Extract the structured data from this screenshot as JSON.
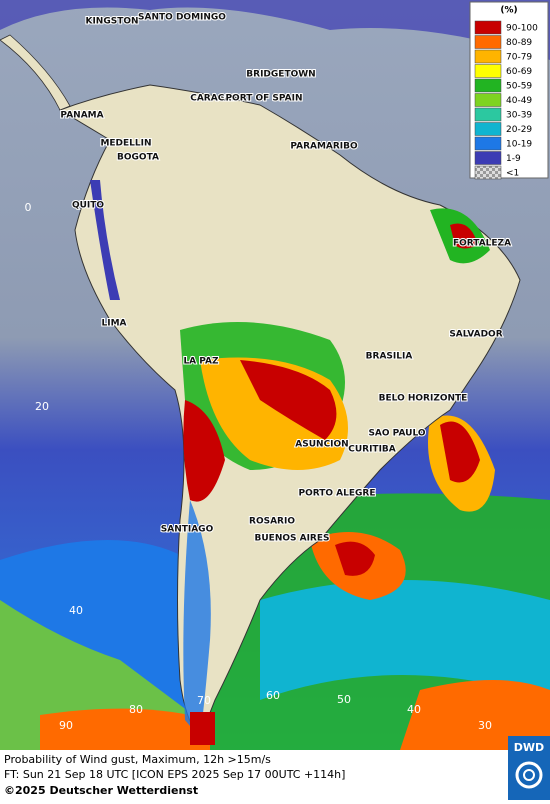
{
  "cities": [
    "KINGSTON",
    "SANTO DOMINGO",
    "BRIDGETOWN",
    "CARACAS",
    "PORT OF SPAIN",
    "PANAMA",
    "MEDELLIN",
    "BOGOTA",
    "PARAMARIBO",
    "QUITO",
    "FORTALEZA",
    "LIMA",
    "SALVADOR",
    "BRASILIA",
    "LA PAZ",
    "BELO HORIZONTE",
    "SAO PAULO",
    "ASUNCION",
    "CURITIBA",
    "PORTO ALEGRE",
    "ROSARIO",
    "SANTIAGO",
    "BUENOS AIRES"
  ],
  "grid_labels": [
    "0",
    "20",
    "40",
    "90",
    "80",
    "70",
    "60",
    "50",
    "40",
    "30"
  ],
  "legend": {
    "title": "(%)",
    "entries": [
      {
        "label": "90-100",
        "color": "#c80000"
      },
      {
        "label": "80-89",
        "color": "#ff6a00"
      },
      {
        "label": "70-79",
        "color": "#ffb400"
      },
      {
        "label": "60-69",
        "color": "#ffff00"
      },
      {
        "label": "50-59",
        "color": "#22b422"
      },
      {
        "label": "40-49",
        "color": "#7ed321"
      },
      {
        "label": "30-39",
        "color": "#2cc8a0"
      },
      {
        "label": "20-29",
        "color": "#10b4d0"
      },
      {
        "label": "10-19",
        "color": "#1e78e6"
      },
      {
        "label": "1-9",
        "color": "#3c3cb4"
      },
      {
        "label": "<1",
        "color": "#b0b0b0"
      }
    ]
  },
  "footer": {
    "line1": "Probability of Wind gust, Maximum, 12h >15m/s",
    "line2": "FT: Sun 21 Sep 18 UTC [ICON EPS 2025 Sep 17 00UTC +114h]",
    "copyright": "©2025 Deutscher Wetterdienst",
    "logo": "DWD"
  }
}
